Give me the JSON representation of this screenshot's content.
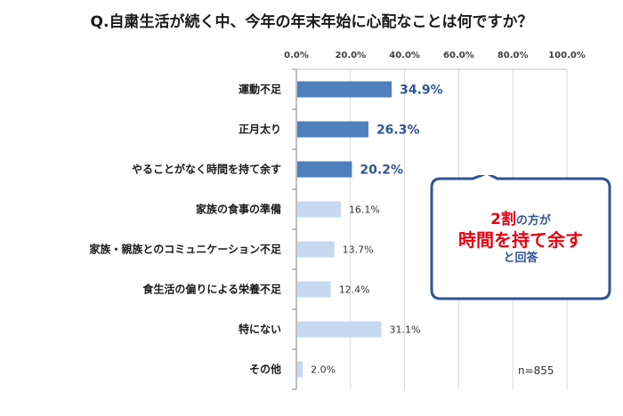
{
  "title": "Q.自粛生活が続く中、今年の年末年始に心配なことは何ですか？",
  "note": "n=855",
  "callout": {
    "line1_highlight": "2割",
    "line1_rest": "の方が",
    "line2": "時間を持て余す",
    "line3": "と回答"
  },
  "colors": {
    "highlight_bar": "#4f7fbf",
    "normal_bar": "#c6d9f1",
    "highlight_label": "#2f5597",
    "callout_border": "#2f5597",
    "callout_accent": "#e60012"
  },
  "chart_data": {
    "type": "bar",
    "orientation": "horizontal",
    "categories": [
      "運動不足",
      "正月太り",
      "やることがなく時間を持て余す",
      "家族の食事の準備",
      "家族・親族とのコミュニケーション不足",
      "食生活の偏りによる栄養不足",
      "特にない",
      "その他"
    ],
    "values": [
      34.9,
      26.3,
      20.2,
      16.1,
      13.7,
      12.4,
      31.1,
      2.0
    ],
    "value_labels": [
      "34.9%",
      "26.3%",
      "20.2%",
      "16.1%",
      "13.7%",
      "12.4%",
      "31.1%",
      "2.0%"
    ],
    "highlighted": [
      true,
      true,
      true,
      false,
      false,
      false,
      false,
      false
    ],
    "xlim": [
      0,
      100
    ],
    "xticks": [
      "0.0%",
      "20.0%",
      "40.0%",
      "60.0%",
      "80.0%",
      "100.0%"
    ],
    "axis_position": "top",
    "grid": true
  }
}
